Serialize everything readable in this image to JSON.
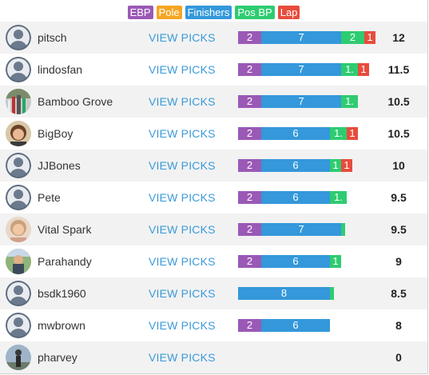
{
  "legend": [
    {
      "label": "EBP",
      "color": "#9b59b6"
    },
    {
      "label": "Pole",
      "color": "#f5a623"
    },
    {
      "label": "Finishers",
      "color": "#3498db"
    },
    {
      "label": "Pos BP",
      "color": "#2ecc71"
    },
    {
      "label": "Lap",
      "color": "#e74c3c"
    }
  ],
  "view_picks_label": "VIEW PICKS",
  "rows": [
    {
      "name": "pitsch",
      "avatar": "default",
      "score": "12",
      "segments": [
        {
          "type": "ebp",
          "value": 2,
          "label": "2"
        },
        {
          "type": "finishers",
          "value": 7,
          "label": "7"
        },
        {
          "type": "posbp",
          "value": 2,
          "label": "2"
        },
        {
          "type": "lap",
          "value": 1,
          "label": "1"
        }
      ]
    },
    {
      "name": "lindosfan",
      "avatar": "default",
      "score": "11.5",
      "segments": [
        {
          "type": "ebp",
          "value": 2,
          "label": "2"
        },
        {
          "type": "finishers",
          "value": 7,
          "label": "7"
        },
        {
          "type": "posbp",
          "value": 1.5,
          "label": "1."
        },
        {
          "type": "lap",
          "value": 1,
          "label": "1"
        }
      ]
    },
    {
      "name": "Bamboo Grove",
      "avatar": "photo-grove",
      "score": "10.5",
      "segments": [
        {
          "type": "ebp",
          "value": 2,
          "label": "2"
        },
        {
          "type": "finishers",
          "value": 7,
          "label": "7"
        },
        {
          "type": "posbp",
          "value": 1.5,
          "label": "1."
        }
      ]
    },
    {
      "name": "BigBoy",
      "avatar": "photo-bigboy",
      "score": "10.5",
      "segments": [
        {
          "type": "ebp",
          "value": 2,
          "label": "2"
        },
        {
          "type": "finishers",
          "value": 6,
          "label": "6"
        },
        {
          "type": "posbp",
          "value": 1.5,
          "label": "1."
        },
        {
          "type": "lap",
          "value": 1,
          "label": "1"
        }
      ]
    },
    {
      "name": "JJBones",
      "avatar": "default",
      "score": "10",
      "segments": [
        {
          "type": "ebp",
          "value": 2,
          "label": "2"
        },
        {
          "type": "finishers",
          "value": 6,
          "label": "6"
        },
        {
          "type": "posbp",
          "value": 1,
          "label": "1"
        },
        {
          "type": "lap",
          "value": 1,
          "label": "1"
        }
      ]
    },
    {
      "name": "Pete",
      "avatar": "default",
      "score": "9.5",
      "segments": [
        {
          "type": "ebp",
          "value": 2,
          "label": "2"
        },
        {
          "type": "finishers",
          "value": 6,
          "label": "6"
        },
        {
          "type": "posbp",
          "value": 1.5,
          "label": "1."
        }
      ]
    },
    {
      "name": "Vital Spark",
      "avatar": "photo-vital",
      "score": "9.5",
      "segments": [
        {
          "type": "ebp",
          "value": 2,
          "label": "2"
        },
        {
          "type": "finishers",
          "value": 7,
          "label": "7"
        },
        {
          "type": "posbp",
          "value": 0.5,
          "label": ""
        }
      ]
    },
    {
      "name": "Parahandy",
      "avatar": "photo-parahandy",
      "score": "9",
      "segments": [
        {
          "type": "ebp",
          "value": 2,
          "label": "2"
        },
        {
          "type": "finishers",
          "value": 6,
          "label": "6"
        },
        {
          "type": "posbp",
          "value": 1,
          "label": "1"
        }
      ]
    },
    {
      "name": "bsdk1960",
      "avatar": "default",
      "score": "8.5",
      "segments": [
        {
          "type": "finishers",
          "value": 8,
          "label": "8"
        },
        {
          "type": "posbp",
          "value": 0.5,
          "label": ""
        }
      ]
    },
    {
      "name": "mwbrown",
      "avatar": "default",
      "score": "8",
      "segments": [
        {
          "type": "ebp",
          "value": 2,
          "label": "2"
        },
        {
          "type": "finishers",
          "value": 6,
          "label": "6"
        }
      ]
    },
    {
      "name": "pharvey",
      "avatar": "photo-pharvey",
      "score": "0",
      "segments": []
    }
  ],
  "segment_colors": {
    "ebp": "#9b59b6",
    "finishers": "#3498db",
    "posbp": "#2ecc71",
    "lap": "#e74c3c"
  }
}
